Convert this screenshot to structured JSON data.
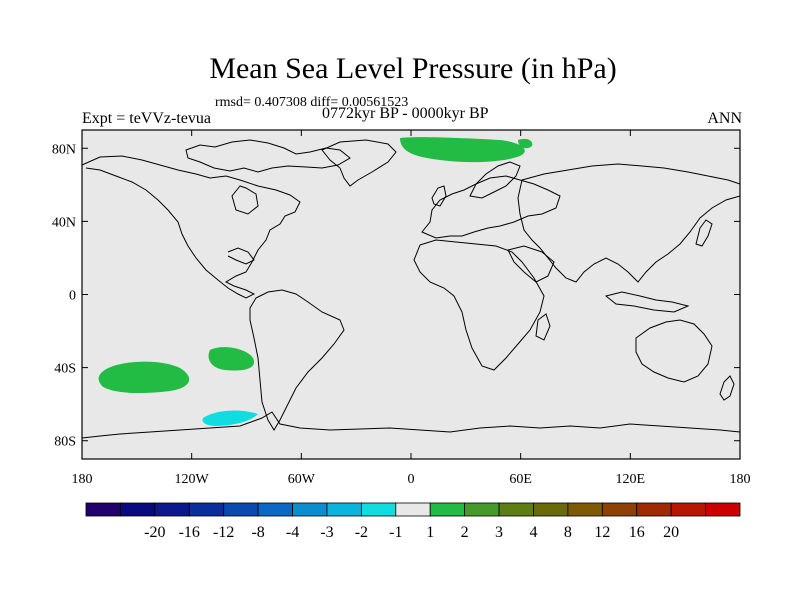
{
  "title": "Mean Sea Level Pressure (in hPa)",
  "stats_line": "rmsd= 0.407308 diff= 0.00561523",
  "experiment_label": "Expt = teVVz-tevua",
  "period_label": "0772kyr BP - 0000kyr BP",
  "season_label": "ANN",
  "colors": {
    "ocean_background": "#e8e8e8",
    "coastline": "#000000",
    "anomaly_green": "#22bb44",
    "anomaly_cyan": "#11dde0"
  },
  "map": {
    "projection": "cylindrical-equidistant",
    "lon_range": [
      -180,
      180
    ],
    "lat_range": [
      -90,
      90
    ],
    "lon_ticks": [
      "180",
      "120W",
      "60W",
      "0",
      "60E",
      "120E",
      "180"
    ],
    "lat_ticks": [
      "80N",
      "40N",
      "0",
      "40S",
      "80S"
    ],
    "anomaly_regions": [
      {
        "name": "Barents-Kara Sea positive",
        "category": "1 to 2",
        "lon_center": 40,
        "lat_center": 82
      },
      {
        "name": "Southeast Pacific positive",
        "category": "1 to 2",
        "lon_center": -145,
        "lat_center": -44
      },
      {
        "name": "South Pacific positive",
        "category": "1 to 2",
        "lon_center": -100,
        "lat_center": -35
      },
      {
        "name": "Amundsen Sea negative",
        "category": "-2 to -1",
        "lon_center": -100,
        "lat_center": -67
      }
    ]
  },
  "colorbar": {
    "colors": [
      "#22006e",
      "#0a0a80",
      "#0b198c",
      "#0a2e9c",
      "#0a4ab0",
      "#0a69c4",
      "#0a8ed0",
      "#0bb4dc",
      "#11dde0",
      "#e8e8e8",
      "#22bb44",
      "#469a2a",
      "#5d7e12",
      "#6b6a0a",
      "#7e5a06",
      "#8f4004",
      "#a02a03",
      "#b81502",
      "#cc0000"
    ],
    "labels": [
      "-20",
      "-16",
      "-12",
      "-8",
      "-4",
      "-3",
      "-2",
      "-1",
      "1",
      "2",
      "3",
      "4",
      "8",
      "12",
      "16",
      "20"
    ]
  }
}
